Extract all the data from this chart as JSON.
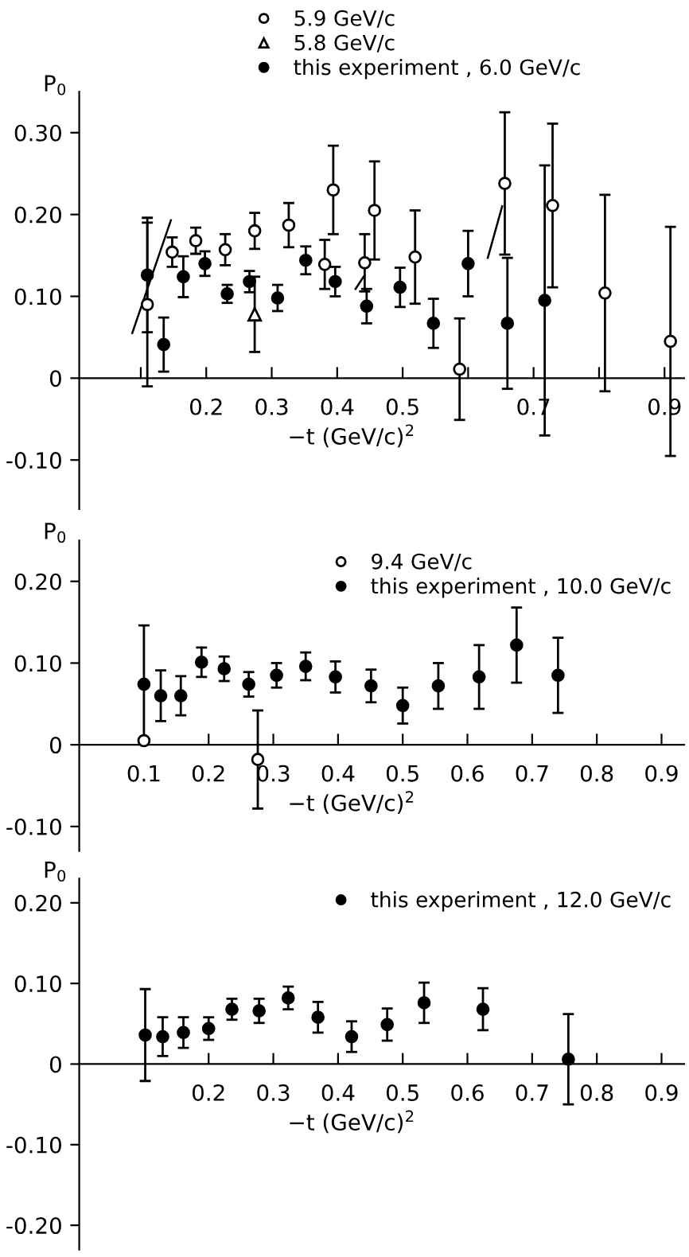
{
  "chart_data": [
    {
      "type": "scatter",
      "ylabel": "P$_{0}$",
      "xlabel": "−t (GeV/c)$^{2}$",
      "xlim": [
        0.006,
        0.93
      ],
      "ylim": [
        -0.16,
        0.35
      ],
      "xticks": [
        {
          "value": 0.1,
          "label": null
        },
        0.2,
        0.3,
        0.4,
        0.5,
        {
          "value": 0.6,
          "label": null
        },
        0.7,
        {
          "value": 0.8,
          "label": null
        },
        0.9
      ],
      "yticks": [
        {
          "value": -0.1,
          "label": "-0.10"
        },
        0,
        {
          "value": 0.1,
          "label": "0.10"
        },
        {
          "value": 0.2,
          "label": "0.20"
        },
        {
          "value": 0.3,
          "label": "0.30"
        }
      ],
      "grid": false,
      "legend": "top",
      "series": [
        {
          "name": "5.9 GeV/c",
          "color": "#ffffff",
          "marker": "circle",
          "x": [
            0.11,
            0.148,
            0.184,
            0.229,
            0.274,
            0.326,
            0.381,
            0.394,
            0.442,
            0.457,
            0.519,
            0.587,
            0.656,
            0.729,
            0.809,
            0.909
          ],
          "values": [
            0.09,
            0.154,
            0.168,
            0.157,
            0.18,
            0.187,
            0.139,
            0.23,
            0.141,
            0.205,
            0.148,
            0.011,
            0.238,
            0.211,
            0.104,
            0.045
          ],
          "errors": [
            0.1,
            0.018,
            0.016,
            0.019,
            0.022,
            0.027,
            0.03,
            0.054,
            0.035,
            0.06,
            0.057,
            0.062,
            0.087,
            0.1,
            0.12,
            0.14
          ]
        },
        {
          "name": "5.8 GeV/c",
          "color": "#ffffff",
          "marker": "triangle",
          "x": [
            0.274
          ],
          "values": [
            0.078
          ],
          "errors": [
            0.046
          ]
        },
        {
          "name": "this experiment , 6.0 GeV/c",
          "color": "#000000",
          "marker": "circle",
          "x": [
            0.11,
            0.135,
            0.165,
            0.198,
            0.232,
            0.266,
            0.309,
            0.352,
            0.397,
            0.445,
            0.496,
            0.547,
            0.6,
            0.66,
            0.717
          ],
          "values": [
            0.126,
            0.041,
            0.124,
            0.14,
            0.103,
            0.118,
            0.098,
            0.144,
            0.118,
            0.088,
            0.111,
            0.067,
            0.14,
            0.067,
            0.095
          ],
          "errors": [
            0.07,
            0.033,
            0.025,
            0.015,
            0.011,
            0.013,
            0.016,
            0.017,
            0.018,
            0.021,
            0.024,
            0.03,
            0.04,
            0.08,
            0.165
          ]
        },
        {
          "type": "line",
          "color": "#000000",
          "marker": "none",
          "x": [
            0.087,
            0.146
          ],
          "values": [
            0.055,
            0.193
          ]
        },
        {
          "type": "line",
          "color": "#000000",
          "marker": "none",
          "x": [
            0.428,
            0.442
          ],
          "values": [
            0.109,
            0.126
          ]
        },
        {
          "type": "line",
          "color": "#000000",
          "marker": "none",
          "x": [
            0.63,
            0.652
          ],
          "values": [
            0.147,
            0.21
          ]
        }
      ]
    },
    {
      "type": "scatter",
      "ylabel": "P$_{0}$",
      "xlabel": "−t (GeV/c)$^{2}$",
      "xlim": [
        0.0,
        0.935
      ],
      "ylim": [
        -0.13,
        0.25
      ],
      "xticks": [
        0.1,
        0.2,
        0.3,
        0.4,
        0.5,
        0.6,
        0.7,
        0.8,
        0.9
      ],
      "yticks": [
        {
          "value": -0.1,
          "label": "-0.10"
        },
        0,
        {
          "value": 0.1,
          "label": "0.10"
        },
        {
          "value": 0.2,
          "label": "0.20"
        }
      ],
      "grid": false,
      "legend": "top right",
      "series": [
        {
          "name": "9.4 GeV/c",
          "color": "#ffffff",
          "marker": "circle",
          "x": [
            0.1,
            0.276
          ],
          "values": [
            0.005,
            -0.018
          ],
          "errors": [
            null,
            0.06
          ]
        },
        {
          "name": "this experiment , 10.0 GeV/c",
          "color": "#000000",
          "marker": "circle",
          "x": [
            0.1,
            0.126,
            0.157,
            0.189,
            0.224,
            0.262,
            0.305,
            0.35,
            0.396,
            0.451,
            0.5,
            0.555,
            0.618,
            0.676,
            0.74
          ],
          "values": [
            0.074,
            0.06,
            0.06,
            0.101,
            0.093,
            0.074,
            0.085,
            0.096,
            0.083,
            0.072,
            0.048,
            0.072,
            0.083,
            0.122,
            0.085
          ],
          "errors": [
            0.072,
            0.031,
            0.024,
            0.018,
            0.015,
            0.015,
            0.015,
            0.017,
            0.019,
            0.02,
            0.022,
            0.028,
            0.039,
            0.046,
            0.046
          ]
        }
      ]
    },
    {
      "type": "scatter",
      "ylabel": "P$_{0}$",
      "xlabel": "−t (GeV/c)$^{2}$",
      "xlim": [
        0.0,
        0.935
      ],
      "ylim": [
        -0.23,
        0.23
      ],
      "xticks": [
        0.2,
        0.3,
        0.4,
        0.5,
        0.6,
        0.7,
        0.8,
        0.9
      ],
      "yticks": [
        {
          "value": -0.2,
          "label": "-0.20"
        },
        {
          "value": -0.1,
          "label": "-0.10"
        },
        0,
        {
          "value": 0.1,
          "label": "0.10"
        },
        {
          "value": 0.2,
          "label": "0.20"
        }
      ],
      "grid": false,
      "legend": "top right",
      "series": [
        {
          "name": "this experiment , 12.0 GeV/c",
          "color": "#000000",
          "marker": "circle",
          "x": [
            0.102,
            0.129,
            0.161,
            0.2,
            0.236,
            0.278,
            0.323,
            0.369,
            0.421,
            0.476,
            0.533,
            0.624,
            0.756
          ],
          "values": [
            0.036,
            0.034,
            0.039,
            0.044,
            0.068,
            0.066,
            0.082,
            0.058,
            0.034,
            0.049,
            0.076,
            0.068,
            0.006
          ],
          "errors": [
            0.057,
            0.024,
            0.019,
            0.014,
            0.013,
            0.015,
            0.014,
            0.019,
            0.019,
            0.02,
            0.025,
            0.026,
            0.056
          ]
        }
      ]
    }
  ]
}
